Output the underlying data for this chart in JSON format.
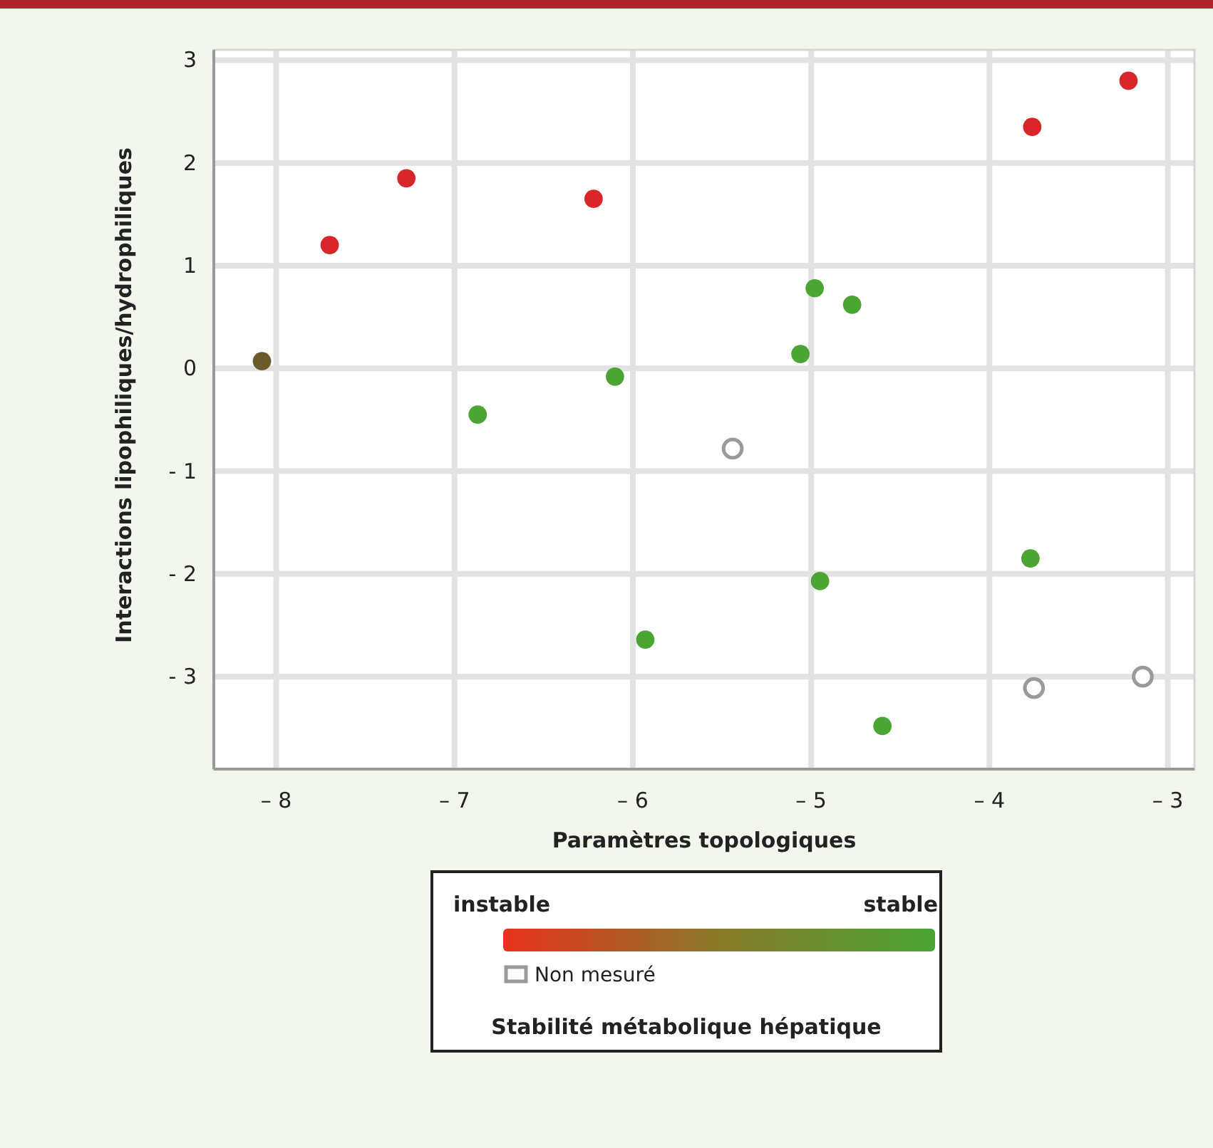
{
  "chart_data": {
    "type": "scatter",
    "xlabel": "Paramètres topologiques",
    "ylabel": "Interactions lipophiliques/hydrophiliques",
    "legend_title": "Stabilité métabolique hépatique",
    "annotations": [
      "instable",
      "stable"
    ],
    "xlim": [
      -8.35,
      -2.85
    ],
    "xticks": [
      {
        "value": -8,
        "label": "– 8"
      },
      {
        "value": -7,
        "label": "– 7"
      },
      {
        "value": -6,
        "label": "– 6"
      },
      {
        "value": -5,
        "label": "– 5"
      },
      {
        "value": -4,
        "label": "– 4"
      },
      {
        "value": -3,
        "label": "– 3"
      }
    ],
    "ylim": [
      -3.9,
      3.1
    ],
    "yticks": [
      {
        "value": -3,
        "label": "- 3"
      },
      {
        "value": -2,
        "label": "- 2"
      },
      {
        "value": -1,
        "label": "- 1"
      },
      0,
      1,
      2,
      3
    ],
    "grid": true,
    "marker": "circle",
    "legend": "bottom",
    "series": [
      {
        "x": [
          -7.7,
          -7.27,
          -6.22,
          -3.76,
          -3.22,
          -8.08,
          -4.98,
          -4.77,
          -5.06,
          -6.1,
          -6.87,
          -4.95,
          -5.93,
          -3.77,
          -4.6
        ],
        "values": [
          1.2,
          1.85,
          1.65,
          2.35,
          2.8,
          0.07,
          0.78,
          0.62,
          0.14,
          -0.08,
          -0.45,
          -2.07,
          -2.64,
          -1.85,
          -3.48
        ],
        "colors": [
          "#d9262b",
          "#d9262b",
          "#d9262b",
          "#d9262b",
          "#d9262b",
          "#6b5a2a",
          "#4aa534",
          "#4aa534",
          "#4aa534",
          "#4aa534",
          "#4aa534",
          "#4aa534",
          "#4aa534",
          "#4aa534",
          "#4aa534"
        ]
      },
      {
        "name": "Non mesuré",
        "color": "#9a9a9a",
        "x": [
          -5.44,
          -3.75,
          -3.14
        ],
        "values": [
          -0.78,
          -3.11,
          -3.0
        ]
      }
    ]
  }
}
